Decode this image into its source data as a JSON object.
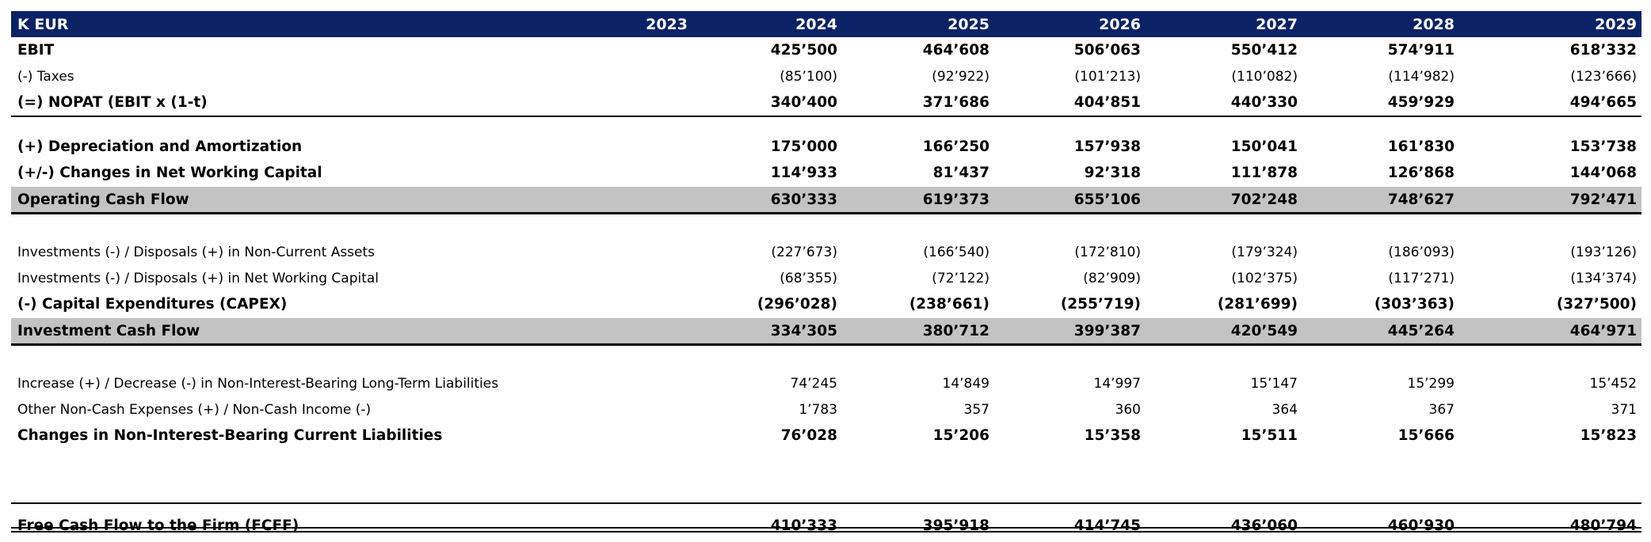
{
  "header": {
    "unit_label": "K EUR",
    "years": [
      "2023",
      "2024",
      "2025",
      "2026",
      "2027",
      "2028",
      "2029"
    ]
  },
  "rows": [
    {
      "label": "EBIT",
      "values": [
        "",
        "425’500",
        "464’608",
        "506’063",
        "550’412",
        "574’911",
        "618’332"
      ]
    },
    {
      "label": "(-) Taxes",
      "values": [
        "",
        "(85’100)",
        "(92’922)",
        "(101’213)",
        "(110’082)",
        "(114’982)",
        "(123’666)"
      ]
    },
    {
      "label": "(=) NOPAT (EBIT x (1-t)",
      "values": [
        "",
        "340’400",
        "371’686",
        "404’851",
        "440’330",
        "459’929",
        "494’665"
      ]
    },
    {
      "label": "(+) Depreciation and Amortization",
      "values": [
        "",
        "175’000",
        "166’250",
        "157’938",
        "150’041",
        "161’830",
        "153’738"
      ]
    },
    {
      "label": "(+/-) Changes in Net Working Capital",
      "values": [
        "",
        "114’933",
        "81’437",
        "92’318",
        "111’878",
        "126’868",
        "144’068"
      ]
    },
    {
      "label": "Operating Cash Flow",
      "values": [
        "",
        "630’333",
        "619’373",
        "655’106",
        "702’248",
        "748’627",
        "792’471"
      ]
    },
    {
      "label": "Investments (-) / Disposals (+) in Non-Current Assets",
      "values": [
        "",
        "(227’673)",
        "(166’540)",
        "(172’810)",
        "(179’324)",
        "(186’093)",
        "(193’126)"
      ]
    },
    {
      "label": "Investments (-) / Disposals (+) in Net Working Capital",
      "values": [
        "",
        "(68’355)",
        "(72’122)",
        "(82’909)",
        "(102’375)",
        "(117’271)",
        "(134’374)"
      ]
    },
    {
      "label": "(-) Capital Expenditures (CAPEX)",
      "values": [
        "",
        "(296’028)",
        "(238’661)",
        "(255’719)",
        "(281’699)",
        "(303’363)",
        "(327’500)"
      ]
    },
    {
      "label": "Investment Cash Flow",
      "values": [
        "",
        "334’305",
        "380’712",
        "399’387",
        "420’549",
        "445’264",
        "464’971"
      ]
    },
    {
      "label": "Increase (+) / Decrease (-) in Non-Interest-Bearing Long-Term Liabilities",
      "values": [
        "",
        "74’245",
        "14’849",
        "14’997",
        "15’147",
        "15’299",
        "15’452"
      ]
    },
    {
      "label": "Other Non-Cash Expenses (+) / Non-Cash Income (-)",
      "values": [
        "",
        "1’783",
        "357",
        "360",
        "364",
        "367",
        "371"
      ]
    },
    {
      "label": "Changes in Non-Interest-Bearing Current Liabilities",
      "values": [
        "",
        "76’028",
        "15’206",
        "15’358",
        "15’511",
        "15’666",
        "15’823"
      ]
    },
    {
      "label": "Free Cash Flow to the Firm (FCFF)",
      "values": [
        "",
        "410’333",
        "395’918",
        "414’745",
        "436’060",
        "460’930",
        "480’794"
      ]
    }
  ],
  "colors": {
    "header_bg": "#0b2266",
    "header_text": "#ffffff",
    "shaded_row": "#c3c3c3"
  }
}
